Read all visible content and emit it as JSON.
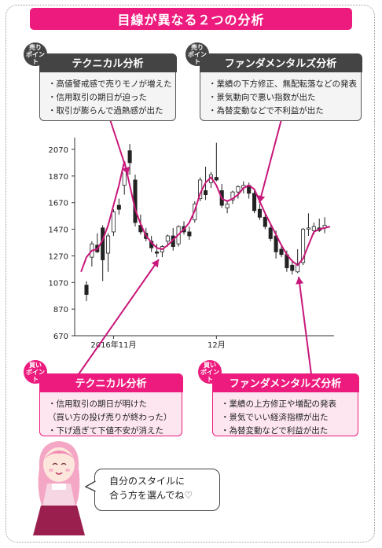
{
  "title": "目線が異なる２つの分析",
  "sell_left": {
    "badge": [
      "売り",
      "ポイント"
    ],
    "header": "テクニカル分析",
    "items": [
      "・高値警戒感で売りモノが増えた",
      "・信用取引の期日が迫った",
      "・取引が膨らんで過熱感が出た"
    ]
  },
  "sell_right": {
    "badge": [
      "売り",
      "ポイント"
    ],
    "header": "ファンダメンタルズ分析",
    "items": [
      "・業績の下方修正、無配転落などの発表",
      "・景気動向で悪い指数が出た",
      "・為替変動などで不利益が出た"
    ]
  },
  "buy_left": {
    "badge": [
      "買い",
      "ポイント"
    ],
    "header": "テクニカル分析",
    "items": [
      "・信用取引の期日が明けた",
      "（買い方の投げ売りが終わった）",
      "・下げ過ぎて下値不安が消えた"
    ]
  },
  "buy_right": {
    "badge": [
      "買い",
      "ポイント"
    ],
    "header": "ファンダメンタルズ分析",
    "items": [
      "・業績の上方修正や増配の発表",
      "・景気でいい経済指標が出た",
      "・為替変動などで利益が出た"
    ]
  },
  "bubble": [
    "自分のスタイルに",
    "合う方を選んでね♡"
  ],
  "colors": {
    "accent": "#ec1b7d",
    "dark": "#444444",
    "ma_line": "#c8177a"
  },
  "chart_data": {
    "type": "candlestick",
    "y_ticks": [
      670,
      870,
      1070,
      1270,
      1470,
      1670,
      1870,
      2070
    ],
    "ylim": [
      670,
      2160
    ],
    "x_labels": [
      {
        "label": "2016年11月",
        "index": 5
      },
      {
        "label": "12月",
        "index": 24
      }
    ],
    "grid": false,
    "candles": [
      {
        "o": 1050,
        "h": 1080,
        "l": 930,
        "c": 980
      },
      {
        "o": 1260,
        "h": 1380,
        "l": 1190,
        "c": 1360
      },
      {
        "o": 1350,
        "h": 1440,
        "l": 1290,
        "c": 1300
      },
      {
        "o": 1480,
        "h": 1500,
        "l": 1080,
        "c": 1240
      },
      {
        "o": 1290,
        "h": 1440,
        "l": 1150,
        "c": 1420
      },
      {
        "o": 1450,
        "h": 1620,
        "l": 1420,
        "c": 1600
      },
      {
        "o": 1650,
        "h": 1700,
        "l": 1580,
        "c": 1620
      },
      {
        "o": 1800,
        "h": 1930,
        "l": 1730,
        "c": 1920
      },
      {
        "o": 2060,
        "h": 2110,
        "l": 1880,
        "c": 1970
      },
      {
        "o": 1840,
        "h": 1880,
        "l": 1490,
        "c": 1520
      },
      {
        "o": 1500,
        "h": 1580,
        "l": 1430,
        "c": 1450
      },
      {
        "o": 1440,
        "h": 1480,
        "l": 1380,
        "c": 1400
      },
      {
        "o": 1380,
        "h": 1420,
        "l": 1300,
        "c": 1330
      },
      {
        "o": 1300,
        "h": 1360,
        "l": 1260,
        "c": 1290
      },
      {
        "o": 1300,
        "h": 1350,
        "l": 1260,
        "c": 1340
      },
      {
        "o": 1380,
        "h": 1430,
        "l": 1340,
        "c": 1420
      },
      {
        "o": 1420,
        "h": 1480,
        "l": 1310,
        "c": 1340
      },
      {
        "o": 1360,
        "h": 1500,
        "l": 1340,
        "c": 1490
      },
      {
        "o": 1490,
        "h": 1530,
        "l": 1430,
        "c": 1450
      },
      {
        "o": 1450,
        "h": 1490,
        "l": 1390,
        "c": 1420
      },
      {
        "o": 1540,
        "h": 1680,
        "l": 1520,
        "c": 1660
      },
      {
        "o": 1700,
        "h": 1860,
        "l": 1680,
        "c": 1840
      },
      {
        "o": 1760,
        "h": 1940,
        "l": 1690,
        "c": 1730
      },
      {
        "o": 1820,
        "h": 1900,
        "l": 1780,
        "c": 1880
      },
      {
        "o": 1860,
        "h": 2120,
        "l": 1830,
        "c": 1840
      },
      {
        "o": 1760,
        "h": 1810,
        "l": 1630,
        "c": 1650
      },
      {
        "o": 1630,
        "h": 1690,
        "l": 1590,
        "c": 1660
      },
      {
        "o": 1690,
        "h": 1760,
        "l": 1660,
        "c": 1750
      },
      {
        "o": 1750,
        "h": 1800,
        "l": 1700,
        "c": 1790
      },
      {
        "o": 1780,
        "h": 1830,
        "l": 1740,
        "c": 1800
      },
      {
        "o": 1800,
        "h": 1820,
        "l": 1700,
        "c": 1740
      },
      {
        "o": 1740,
        "h": 1760,
        "l": 1590,
        "c": 1610
      },
      {
        "o": 1620,
        "h": 1660,
        "l": 1540,
        "c": 1560
      },
      {
        "o": 1560,
        "h": 1580,
        "l": 1470,
        "c": 1490
      },
      {
        "o": 1480,
        "h": 1500,
        "l": 1380,
        "c": 1400
      },
      {
        "o": 1420,
        "h": 1460,
        "l": 1250,
        "c": 1300
      },
      {
        "o": 1320,
        "h": 1360,
        "l": 1260,
        "c": 1280
      },
      {
        "o": 1280,
        "h": 1310,
        "l": 1150,
        "c": 1180
      },
      {
        "o": 1200,
        "h": 1240,
        "l": 1130,
        "c": 1160
      },
      {
        "o": 1150,
        "h": 1320,
        "l": 1140,
        "c": 1210
      },
      {
        "o": 1220,
        "h": 1480,
        "l": 1200,
        "c": 1470
      },
      {
        "o": 1470,
        "h": 1590,
        "l": 1420,
        "c": 1480
      },
      {
        "o": 1460,
        "h": 1520,
        "l": 1430,
        "c": 1490
      },
      {
        "o": 1480,
        "h": 1550,
        "l": 1450,
        "c": 1460
      },
      {
        "o": 1480,
        "h": 1560,
        "l": 1440,
        "c": 1500
      }
    ],
    "moving_average": [
      1010,
      1150,
      1260,
      1310,
      1320,
      1390,
      1500,
      1650,
      1800,
      1980,
      1800,
      1620,
      1510,
      1420,
      1370,
      1330,
      1320,
      1350,
      1390,
      1430,
      1470,
      1520,
      1610,
      1740,
      1820,
      1860,
      1800,
      1700,
      1680,
      1700,
      1730,
      1780,
      1800,
      1770,
      1680,
      1590,
      1510,
      1430,
      1350,
      1280,
      1230,
      1200,
      1250,
      1350,
      1450,
      1470,
      1480,
      1490
    ],
    "ma_offset": -2
  }
}
